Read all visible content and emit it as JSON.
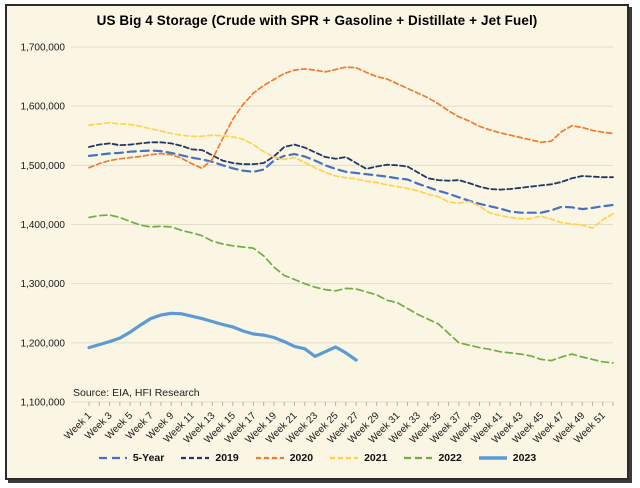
{
  "window": {
    "background_color": "#fbf5e4",
    "border_color": "#2b2b2b"
  },
  "chart_data": {
    "type": "line",
    "title": "US Big 4 Storage (Crude with SPR + Gasoline + Distillate + Jet Fuel)",
    "source_note": "Source: EIA, HFI Research",
    "grid": "horizontal",
    "legend_position": "bottom",
    "x_axis": {
      "unit": "week",
      "min_week": 1,
      "max_week": 52,
      "tick_labels": [
        "Week 1",
        "Week 3",
        "Week 5",
        "Week 7",
        "Week 9",
        "Week 11",
        "Week 13",
        "Week 15",
        "Week 17",
        "Week 19",
        "Week 21",
        "Week 23",
        "Week 25",
        "Week 27",
        "Week 29",
        "Week 31",
        "Week 33",
        "Week 35",
        "Week 37",
        "Week 39",
        "Week 41",
        "Week 43",
        "Week 45",
        "Week 47",
        "Week 49",
        "Week 51"
      ],
      "label_rotation_deg": 45
    },
    "y_axis": {
      "min": 1100000,
      "max": 1700000,
      "tick_interval": 100000,
      "ticks": [
        {
          "value": 1700000,
          "label": "1,700,000"
        },
        {
          "value": 1600000,
          "label": "1,600,000"
        },
        {
          "value": 1500000,
          "label": "1,500,000"
        },
        {
          "value": 1400000,
          "label": "1,400,000"
        },
        {
          "value": 1300000,
          "label": "1,300,000"
        },
        {
          "value": 1200000,
          "label": "1,200,000"
        },
        {
          "value": 1100000,
          "label": "1,100,000"
        }
      ]
    },
    "series": [
      {
        "name": "5-Year",
        "color": "#4472C4",
        "style": "dashed",
        "dash": "8 5",
        "width": 2.2,
        "start_week": 1,
        "values": [
          1516000,
          1518000,
          1520000,
          1521000,
          1523000,
          1524000,
          1525000,
          1524000,
          1521000,
          1517000,
          1513000,
          1510000,
          1506000,
          1500000,
          1495000,
          1491000,
          1489000,
          1493000,
          1508000,
          1516000,
          1519000,
          1515000,
          1508000,
          1500000,
          1494000,
          1489000,
          1487000,
          1485000,
          1483000,
          1481000,
          1478000,
          1476000,
          1469000,
          1463000,
          1457000,
          1452000,
          1446000,
          1440000,
          1435000,
          1431000,
          1427000,
          1422000,
          1420000,
          1420000,
          1420000,
          1424000,
          1430000,
          1429000,
          1426000,
          1428000,
          1431000,
          1433000
        ]
      },
      {
        "name": "2019",
        "color": "#1F3864",
        "style": "dashed",
        "dash": "5 3",
        "width": 1.8,
        "start_week": 1,
        "values": [
          1531000,
          1535000,
          1537000,
          1534000,
          1535000,
          1537000,
          1539000,
          1539000,
          1537000,
          1533000,
          1527000,
          1526000,
          1517000,
          1508000,
          1504000,
          1502000,
          1502000,
          1504000,
          1515000,
          1531000,
          1535000,
          1530000,
          1522000,
          1514000,
          1511000,
          1514000,
          1504000,
          1494000,
          1498000,
          1501000,
          1500000,
          1498000,
          1488000,
          1478000,
          1475000,
          1474000,
          1475000,
          1470000,
          1464000,
          1460000,
          1459000,
          1460000,
          1462000,
          1464000,
          1466000,
          1468000,
          1472000,
          1478000,
          1482000,
          1481000,
          1480000,
          1480000
        ]
      },
      {
        "name": "2020",
        "color": "#ED7D31",
        "style": "dashed",
        "dash": "5 3",
        "width": 1.7,
        "start_week": 1,
        "values": [
          1496000,
          1503000,
          1508000,
          1511000,
          1513000,
          1515000,
          1518000,
          1520000,
          1518000,
          1512000,
          1503000,
          1495000,
          1510000,
          1545000,
          1578000,
          1603000,
          1622000,
          1635000,
          1645000,
          1655000,
          1661000,
          1663000,
          1661000,
          1658000,
          1662000,
          1666000,
          1665000,
          1657000,
          1650000,
          1646000,
          1638000,
          1630000,
          1622000,
          1614000,
          1604000,
          1592000,
          1582000,
          1575000,
          1566000,
          1560000,
          1555000,
          1551000,
          1547000,
          1543000,
          1539000,
          1541000,
          1557000,
          1567000,
          1564000,
          1559000,
          1556000,
          1554000
        ]
      },
      {
        "name": "2021",
        "color": "#FFD34E",
        "style": "dashed",
        "dash": "5 3",
        "width": 1.7,
        "start_week": 1,
        "values": [
          1568000,
          1570000,
          1572000,
          1570000,
          1569000,
          1566000,
          1562000,
          1558000,
          1554000,
          1551000,
          1549000,
          1549000,
          1551000,
          1550000,
          1548000,
          1544000,
          1535000,
          1523000,
          1514000,
          1510000,
          1513000,
          1505000,
          1496000,
          1488000,
          1482000,
          1479000,
          1477000,
          1473000,
          1471000,
          1467000,
          1464000,
          1461000,
          1457000,
          1451000,
          1447000,
          1438000,
          1436000,
          1439000,
          1431000,
          1420000,
          1415000,
          1412000,
          1410000,
          1410000,
          1414000,
          1409000,
          1403000,
          1401000,
          1399000,
          1394000,
          1408000,
          1418000
        ]
      },
      {
        "name": "2022",
        "color": "#70AD47",
        "style": "dashed",
        "dash": "7 4",
        "width": 1.7,
        "start_week": 1,
        "values": [
          1412000,
          1415000,
          1416000,
          1412000,
          1405000,
          1399000,
          1396000,
          1397000,
          1396000,
          1390000,
          1386000,
          1381000,
          1372000,
          1367000,
          1364000,
          1362000,
          1360000,
          1347000,
          1328000,
          1314000,
          1307000,
          1300000,
          1294000,
          1290000,
          1288000,
          1292000,
          1291000,
          1286000,
          1281000,
          1272000,
          1268000,
          1258000,
          1248000,
          1240000,
          1232000,
          1216000,
          1200000,
          1196000,
          1192000,
          1189000,
          1185000,
          1183000,
          1181000,
          1178000,
          1172000,
          1170000,
          1176000,
          1181000,
          1176000,
          1172000,
          1168000,
          1166000
        ]
      },
      {
        "name": "2023",
        "color": "#5B9BD5",
        "style": "solid",
        "dash": "",
        "width": 3.2,
        "start_week": 1,
        "values": [
          1192000,
          1197000,
          1202000,
          1208000,
          1218000,
          1230000,
          1241000,
          1247000,
          1250000,
          1249000,
          1245000,
          1241000,
          1236000,
          1231000,
          1227000,
          1220000,
          1215000,
          1213000,
          1209000,
          1202000,
          1194000,
          1190000,
          1177000,
          1185000,
          1193000,
          1183000,
          1171000
        ]
      }
    ]
  }
}
